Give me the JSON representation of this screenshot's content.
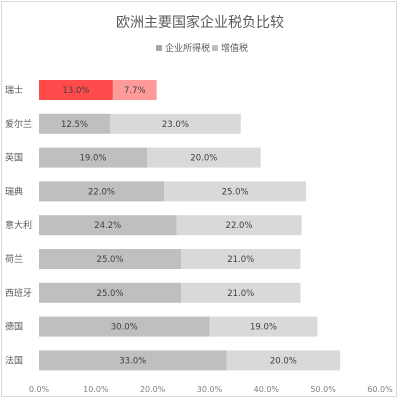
{
  "chart_data": {
    "type": "bar",
    "orientation": "horizontal",
    "stacked": true,
    "title": "欧洲主要国家企业税负比较",
    "legend": {
      "placement": "top",
      "items": [
        "企业所得税",
        "增值税"
      ]
    },
    "categories": [
      "瑞士",
      "爱尔兰",
      "英国",
      "瑞典",
      "意大利",
      "荷兰",
      "西班牙",
      "德国",
      "法国"
    ],
    "series": [
      {
        "name": "企业所得税",
        "values": [
          13.0,
          12.5,
          19.0,
          22.0,
          24.2,
          25.0,
          25.0,
          30.0,
          33.0
        ],
        "labels": [
          "13.0%",
          "12.5%",
          "19.0%",
          "22.0%",
          "24.2%",
          "25.0%",
          "25.0%",
          "30.0%",
          "33.0%"
        ]
      },
      {
        "name": "增值税",
        "values": [
          7.7,
          23.0,
          20.0,
          25.0,
          22.0,
          21.0,
          21.0,
          19.0,
          20.0
        ],
        "labels": [
          "7.7%",
          "23.0%",
          "20.0%",
          "25.0%",
          "22.0%",
          "21.0%",
          "21.0%",
          "19.0%",
          "20.0%"
        ]
      }
    ],
    "highlight_category": "瑞士",
    "colors": {
      "series1": "#bfbfbf",
      "series2": "#d9d9d9",
      "highlight1": "#ff4b4b",
      "highlight2": "#ff9a9a",
      "legend1": "#a6a6a6",
      "legend2": "#bfbfbf"
    },
    "xlim": [
      0,
      60
    ],
    "xticks": [
      0,
      10,
      20,
      30,
      40,
      50,
      60
    ],
    "xtick_labels": [
      "0.0%",
      "10.0%",
      "20.0%",
      "30.0%",
      "40.0%",
      "50.0%",
      "60.0%"
    ],
    "grid": false
  }
}
